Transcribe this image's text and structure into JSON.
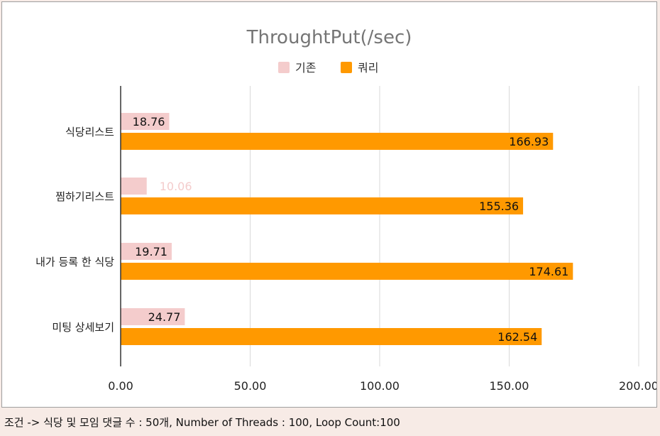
{
  "chart_data": {
    "type": "bar",
    "orientation": "horizontal",
    "title": "ThroughtPut(/sec)",
    "categories": [
      "식당리스트",
      "찜하기리스트",
      "내가 등록 한 식당",
      "미팅 상세보기"
    ],
    "series": [
      {
        "name": "기존",
        "color": "#f4cccc",
        "values": [
          18.76,
          10.06,
          19.71,
          24.77
        ],
        "labels": [
          "18.76",
          "10.06",
          "19.71",
          "24.77"
        ]
      },
      {
        "name": "쿼리",
        "color": "#ff9900",
        "values": [
          166.93,
          155.36,
          174.61,
          162.54
        ],
        "labels": [
          "166.93",
          "155.36",
          "174.61",
          "162.54"
        ]
      }
    ],
    "xlim": [
      0,
      200
    ],
    "xticks": [
      0,
      50,
      100,
      150,
      200
    ],
    "xtick_labels": [
      "0.00",
      "50.00",
      "100.00",
      "150.00",
      "200.00"
    ],
    "xlabel": "",
    "ylabel": "",
    "grid": true,
    "legend_position": "top"
  },
  "footer": {
    "text": "조건 -> 식당 및 모임 댓글 수 : 50개, Number of Threads : 100, Loop Count:100"
  }
}
